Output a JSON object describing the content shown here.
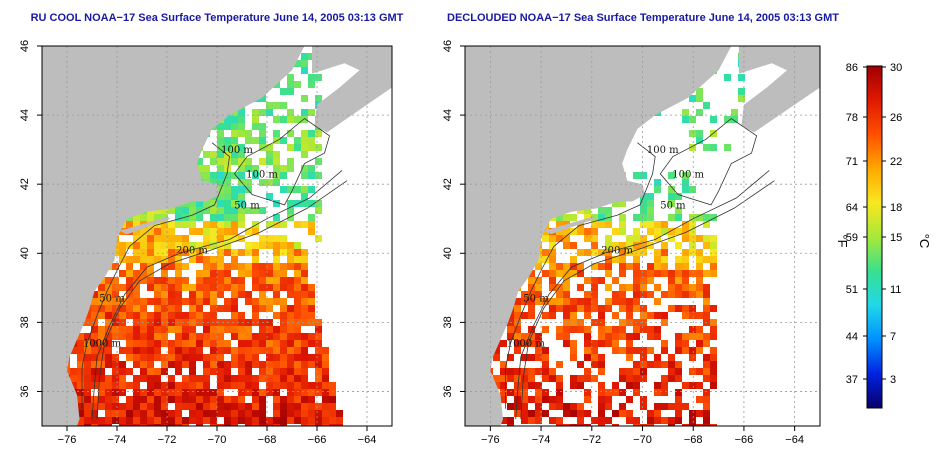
{
  "panels": [
    {
      "id": "rucool",
      "title": "RU COOL NOAA−17 Sea Surface Temperature June 14, 2005 03:13 GMT",
      "cloud_cover": "partial"
    },
    {
      "id": "declouded",
      "title": "DECLOUDED NOAA−17 Sea Surface Temperature June 14, 2005 03:13 GMT",
      "cloud_cover": "declouded"
    }
  ],
  "axes": {
    "lon_ticks": [
      "−76",
      "−74",
      "−72",
      "−70",
      "−68",
      "−66",
      "−64"
    ],
    "lat_ticks": [
      "36",
      "38",
      "40",
      "42",
      "44",
      "46"
    ],
    "lon_range": [
      -77,
      -63
    ],
    "lat_range": [
      35,
      46
    ]
  },
  "contour_labels": [
    "100 m",
    "100 m",
    "50 m",
    "200 m",
    "50 m",
    "1000 m"
  ],
  "colorbar": {
    "f_label": "°F",
    "c_label": "°C",
    "f_ticks": [
      "86",
      "78",
      "71",
      "64",
      "59",
      "51",
      "44",
      "37"
    ],
    "c_ticks": [
      "30",
      "26",
      "22",
      "18",
      "15",
      "11",
      "7",
      "3"
    ],
    "range_c": [
      0,
      30
    ],
    "colors": [
      "#08006a",
      "#0022e0",
      "#0090ff",
      "#20d8e8",
      "#38e090",
      "#a8e838",
      "#f8e820",
      "#ffa800",
      "#ff5000",
      "#e01800",
      "#a00000"
    ]
  },
  "colors": {
    "land": "#bdbdbd",
    "title": "#1a1aa0",
    "water_warm": "#e83010"
  }
}
